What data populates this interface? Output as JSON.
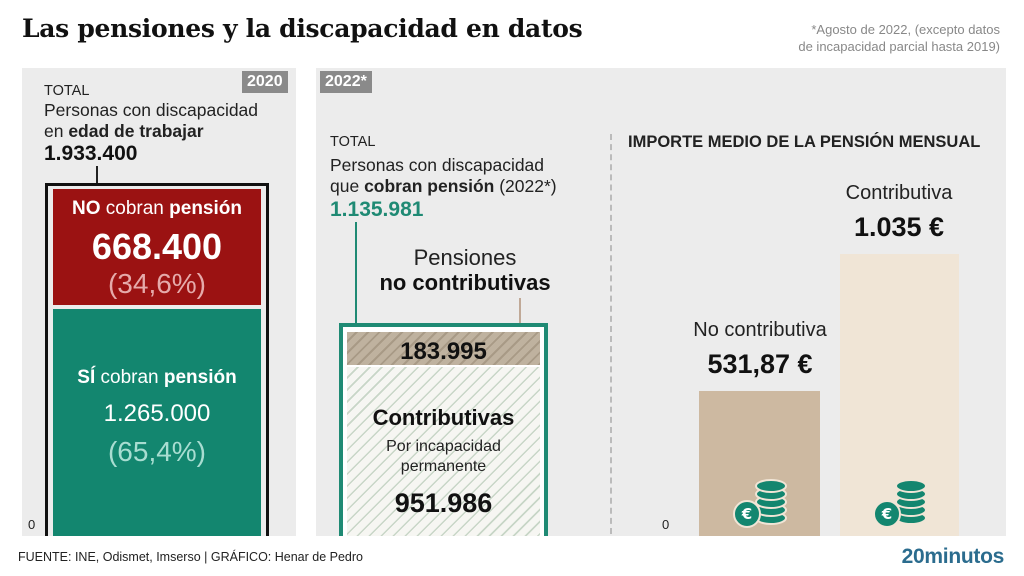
{
  "title": "Las pensiones y la discapacidad en datos",
  "note_line1": "*Agosto de 2022, (excepto datos",
  "note_line2": "de incapacidad parcial hasta 2019)",
  "left": {
    "year": "2020",
    "total_label": "TOTAL",
    "desc_line1": "Personas con discapacidad",
    "desc_line2_pre": "en ",
    "desc_line2_bold": "edad de trabajar",
    "total_value": "1.933.400",
    "no_label_bold1": "NO",
    "no_label_mid": " cobran ",
    "no_label_bold2": "pensión",
    "no_value": "668.400",
    "no_pct": "(34,6%)",
    "si_label_bold1": "SÍ",
    "si_label_mid": " cobran ",
    "si_label_bold2": "pensión",
    "si_value": "1.265.000",
    "si_pct": "(65,4%)",
    "zero": "0"
  },
  "middle": {
    "year": "2022*",
    "total_label": "TOTAL",
    "desc_line1": "Personas con discapacidad",
    "desc_line2_pre": "que ",
    "desc_line2_bold": "cobran pensión",
    "desc_line2_post": " (2022*)",
    "total_value": "1.135.981",
    "nc_label_line1": "Pensiones",
    "nc_label_line2": "no contributivas",
    "nc_value": "183.995",
    "c_title": "Contributivas",
    "c_sub1": "Por incapacidad",
    "c_sub2": "permanente",
    "c_value": "951.986"
  },
  "right": {
    "header": "IMPORTE MEDIO DE LA PENSIÓN MENSUAL",
    "zero": "0"
  },
  "chart_data": [
    {
      "type": "bar",
      "categories": [
        "NO cobran pensión",
        "SÍ cobran pensión"
      ],
      "values": [
        668400,
        1265000
      ],
      "percent_labels": [
        "(34,6%)",
        "(65,4%)"
      ],
      "title": "Personas con discapacidad en edad de trabajar",
      "total": 1933400,
      "total_label": "1.933.400",
      "value_labels": [
        "668.400",
        "1.265.000"
      ]
    },
    {
      "type": "bar",
      "categories": [
        "Pensiones no contributivas",
        "Contributivas - Por incapacidad permanente"
      ],
      "values": [
        183995,
        951986
      ],
      "title": "Personas con discapacidad que cobran pensión (2022*)",
      "total": 1135981,
      "total_label": "1.135.981",
      "value_labels": [
        "183.995",
        "951.986"
      ]
    },
    {
      "type": "bar",
      "title": "IMPORTE MEDIO DE LA PENSIÓN MENSUAL",
      "categories": [
        "No contributiva",
        "Contributiva"
      ],
      "values": [
        531.87,
        1035
      ],
      "value_labels": [
        "531,87 €",
        "1.035 €"
      ],
      "ylim": [
        0,
        1100
      ]
    }
  ],
  "colors": {
    "no_bar": "#9b1212",
    "si_bar": "#13866f",
    "teal_text": "#1f8a74",
    "tan_light": "#f0e5d6",
    "tan_dark": "#cdb9a1",
    "coin": "#13866f",
    "brand": "#2b6c8e"
  },
  "icons": [
    "euro-coins-icon",
    "euro-coins-icon"
  ],
  "footer": {
    "source": "FUENTE: INE, Odismet, Imserso |  GRÁFICO: Henar de Pedro",
    "brand": "20minutos"
  }
}
